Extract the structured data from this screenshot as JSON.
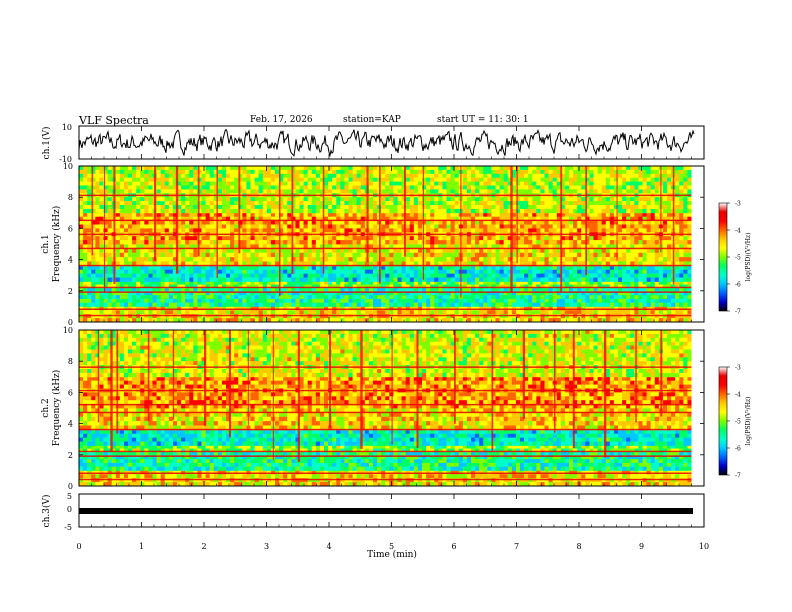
{
  "header": {
    "title": "VLF Spectra",
    "date": "Feb. 17, 2026",
    "station": "station=KAP",
    "start": "start UT =  11: 30: 1"
  },
  "colors": {
    "scale": [
      "#000000",
      "#0000c8",
      "#0064ff",
      "#00c8ff",
      "#00ffc8",
      "#00ff64",
      "#7dff00",
      "#ffff00",
      "#ffc800",
      "#ff6400",
      "#ff0000",
      "#e60000",
      "#ffffff"
    ],
    "trace": "#000000"
  },
  "chart_data": [
    {
      "type": "line",
      "id": "ch1_waveform",
      "ylabel": "ch.1(V)",
      "ylim": [
        -10,
        10
      ],
      "yticks": [
        "10",
        "-10"
      ],
      "xlim": [
        0,
        10
      ],
      "description_series": "waveform amplitude vs time (min)",
      "amplitude_range": [
        -8,
        8
      ]
    },
    {
      "type": "heatmap",
      "id": "ch1_spectrogram",
      "ylabel": "ch.1\nFrequency (kHz)",
      "ylabel_top": "ch.1",
      "ylabel_bottom": "Frequency (kHz)",
      "ylim": [
        0,
        10
      ],
      "yticks": [
        "0",
        "2",
        "4",
        "6",
        "8",
        "10"
      ],
      "xlim": [
        0,
        9.8
      ],
      "colorbar": {
        "label": "log(PSD)(V²/Hz)",
        "range": [
          -7,
          -3
        ],
        "ticks": [
          "-3",
          "-4",
          "-5",
          "-6",
          "-7"
        ]
      },
      "bands_khz": [
        {
          "from": 0,
          "to": 1.0,
          "level": -4.5
        },
        {
          "from": 1.0,
          "to": 2.2,
          "level": -5.5
        },
        {
          "from": 2.2,
          "to": 2.6,
          "level": -5.0
        },
        {
          "from": 2.6,
          "to": 3.6,
          "level": -5.7
        },
        {
          "from": 3.6,
          "to": 5.0,
          "level": -4.6
        },
        {
          "from": 5.0,
          "to": 7.0,
          "level": -4.3
        },
        {
          "from": 7.0,
          "to": 10.0,
          "level": -4.8
        }
      ],
      "lines_khz": [
        0.4,
        0.8,
        1.9,
        2.2,
        3.6,
        4.7,
        5.6,
        6.5,
        8.1
      ],
      "burst_times_min": [
        0.2,
        0.4,
        0.55,
        1.2,
        1.55,
        1.9,
        2.2,
        2.55,
        3.2,
        3.4,
        3.9,
        4.6,
        4.8,
        5.2,
        5.5,
        6.1,
        6.9,
        7.0,
        7.7,
        8.1,
        8.6,
        9.3,
        9.5
      ]
    },
    {
      "type": "heatmap",
      "id": "ch2_spectrogram",
      "ylabel_top": "ch.2",
      "ylabel_bottom": "Frequency (kHz)",
      "ylim": [
        0,
        10
      ],
      "yticks": [
        "0",
        "2",
        "4",
        "6",
        "8",
        "10"
      ],
      "xlim": [
        0,
        9.8
      ],
      "colorbar": {
        "label": "log(PSD)(V²/Hz)",
        "range": [
          -7,
          -3
        ],
        "ticks": [
          "-3",
          "-4",
          "-5",
          "-6",
          "-7"
        ]
      },
      "bands_khz": [
        {
          "from": 0,
          "to": 1.0,
          "level": -4.5
        },
        {
          "from": 1.0,
          "to": 2.2,
          "level": -5.5
        },
        {
          "from": 2.2,
          "to": 2.6,
          "level": -5.0
        },
        {
          "from": 2.6,
          "to": 3.6,
          "level": -5.7
        },
        {
          "from": 3.6,
          "to": 5.0,
          "level": -4.5
        },
        {
          "from": 5.0,
          "to": 7.0,
          "level": -4.2
        },
        {
          "from": 7.0,
          "to": 10.0,
          "level": -4.7
        }
      ],
      "lines_khz": [
        0.4,
        0.8,
        1.9,
        2.2,
        3.6,
        4.7,
        5.2,
        6.1,
        7.6
      ],
      "burst_times_min": [
        0.3,
        0.5,
        0.6,
        1.1,
        1.5,
        2.0,
        2.4,
        2.7,
        3.1,
        3.5,
        4.0,
        4.5,
        5.0,
        5.4,
        6.0,
        6.6,
        7.1,
        7.6,
        7.9,
        8.4,
        8.9,
        9.3
      ]
    },
    {
      "type": "line",
      "id": "ch3_waveform",
      "ylabel": "ch.3(V)",
      "ylim": [
        -5,
        5
      ],
      "yticks": [
        "5",
        "0",
        "-5"
      ],
      "xlim": [
        0,
        10
      ],
      "xlabel": "Time (min)",
      "xticks": [
        "0",
        "1",
        "2",
        "3",
        "4",
        "5",
        "6",
        "7",
        "8",
        "9",
        "10"
      ],
      "level_v": -1.0
    }
  ]
}
